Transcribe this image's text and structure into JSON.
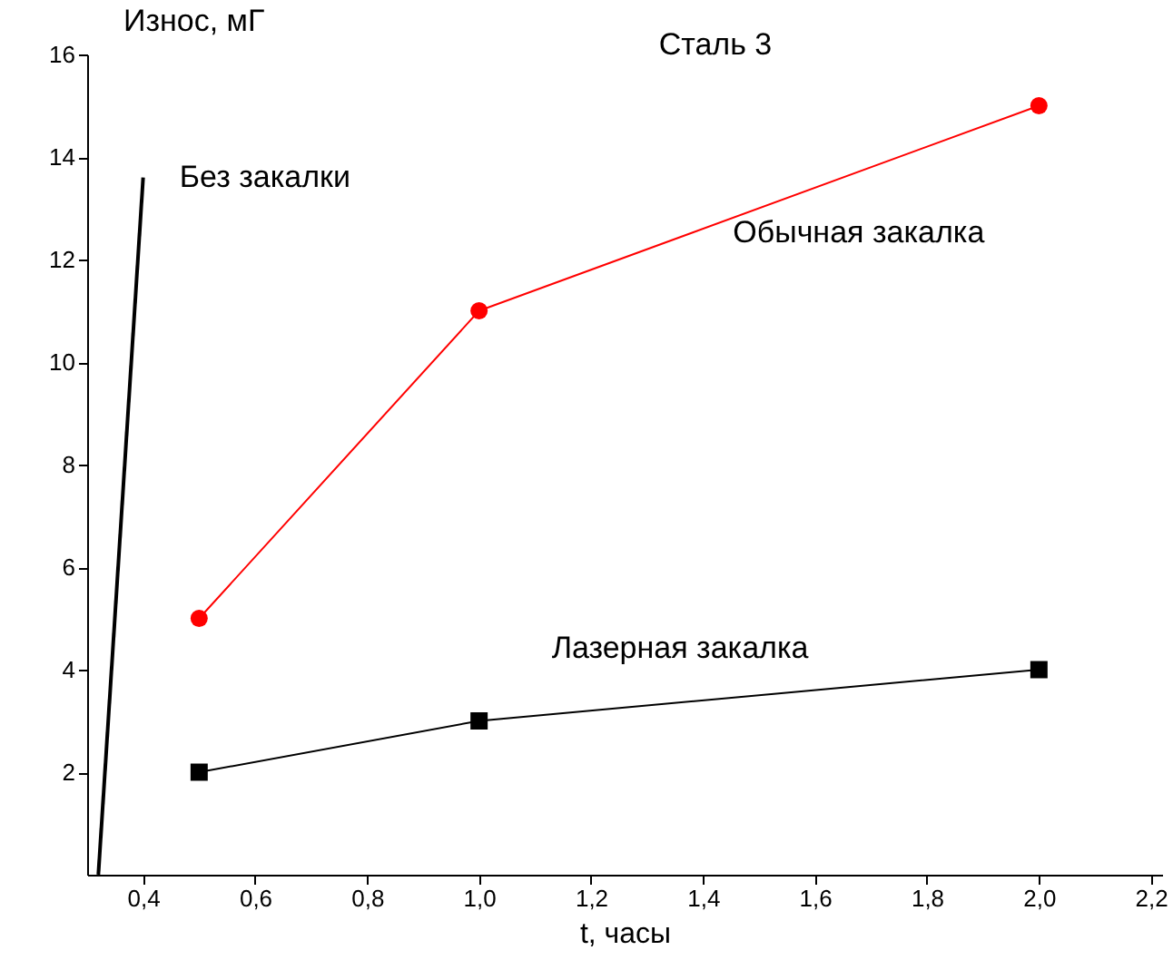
{
  "chart_data": {
    "type": "line",
    "title": "Сталь 3",
    "xlabel": "t, часы",
    "ylabel": "Износ, мГ",
    "xlim": [
      0.3,
      2.22
    ],
    "ylim": [
      0,
      16
    ],
    "xticks": [
      {
        "value": 0.4,
        "label": "0,4"
      },
      {
        "value": 0.6,
        "label": "0,6"
      },
      {
        "value": 0.8,
        "label": "0,8"
      },
      {
        "value": 1.0,
        "label": "1,0"
      },
      {
        "value": 1.2,
        "label": "1,2"
      },
      {
        "value": 1.4,
        "label": "1,4"
      },
      {
        "value": 1.6,
        "label": "1,6"
      },
      {
        "value": 1.8,
        "label": "1,8"
      },
      {
        "value": 2.0,
        "label": "2,0"
      },
      {
        "value": 2.2,
        "label": "2,2"
      }
    ],
    "yticks": [
      2,
      4,
      6,
      8,
      10,
      12,
      14,
      16
    ],
    "grid": false,
    "series": [
      {
        "name": "Без закалки",
        "color": "#000000",
        "marker": "none",
        "x": [
          0.32,
          0.4
        ],
        "values": [
          0,
          13.6
        ]
      },
      {
        "name": "Обычная закалка",
        "color": "#ff0000",
        "marker": "circle",
        "x": [
          0.5,
          1.0,
          2.0
        ],
        "values": [
          5,
          11,
          15
        ]
      },
      {
        "name": "Лазерная закалка",
        "color": "#000000",
        "marker": "square",
        "x": [
          0.5,
          1.0,
          2.0
        ],
        "values": [
          2,
          3,
          4
        ]
      }
    ]
  }
}
